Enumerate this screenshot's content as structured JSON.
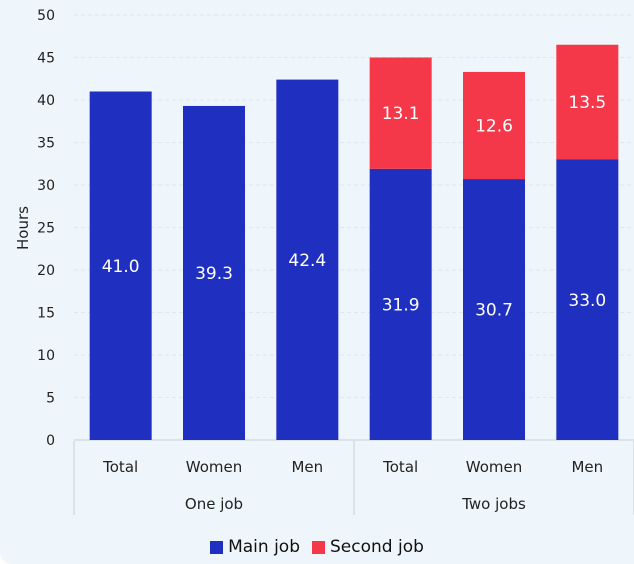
{
  "chart_data": {
    "type": "bar",
    "stacked": true,
    "ylabel": "Hours",
    "ylim": [
      0,
      50
    ],
    "yticks": [
      0,
      5,
      10,
      15,
      20,
      25,
      30,
      35,
      40,
      45,
      50
    ],
    "grid": true,
    "categories": [
      "Total",
      "Women",
      "Men",
      "Total",
      "Women",
      "Men"
    ],
    "groups": [
      {
        "label": "One job",
        "categories": [
          0,
          1,
          2
        ]
      },
      {
        "label": "Two jobs",
        "categories": [
          3,
          4,
          5
        ]
      }
    ],
    "series": [
      {
        "name": "Main job",
        "color": "#1f2fbf",
        "values": [
          41.0,
          39.3,
          42.4,
          31.9,
          30.7,
          33.0
        ],
        "labels": [
          "41.0",
          "39.3",
          "42.4",
          "31.9",
          "30.7",
          "33.0"
        ]
      },
      {
        "name": "Second job",
        "color": "#f5374a",
        "values": [
          0,
          0,
          0,
          13.1,
          12.6,
          13.5
        ],
        "labels": [
          "",
          "",
          "",
          "13.1",
          "12.6",
          "13.5"
        ]
      }
    ],
    "legend_position": "bottom"
  }
}
